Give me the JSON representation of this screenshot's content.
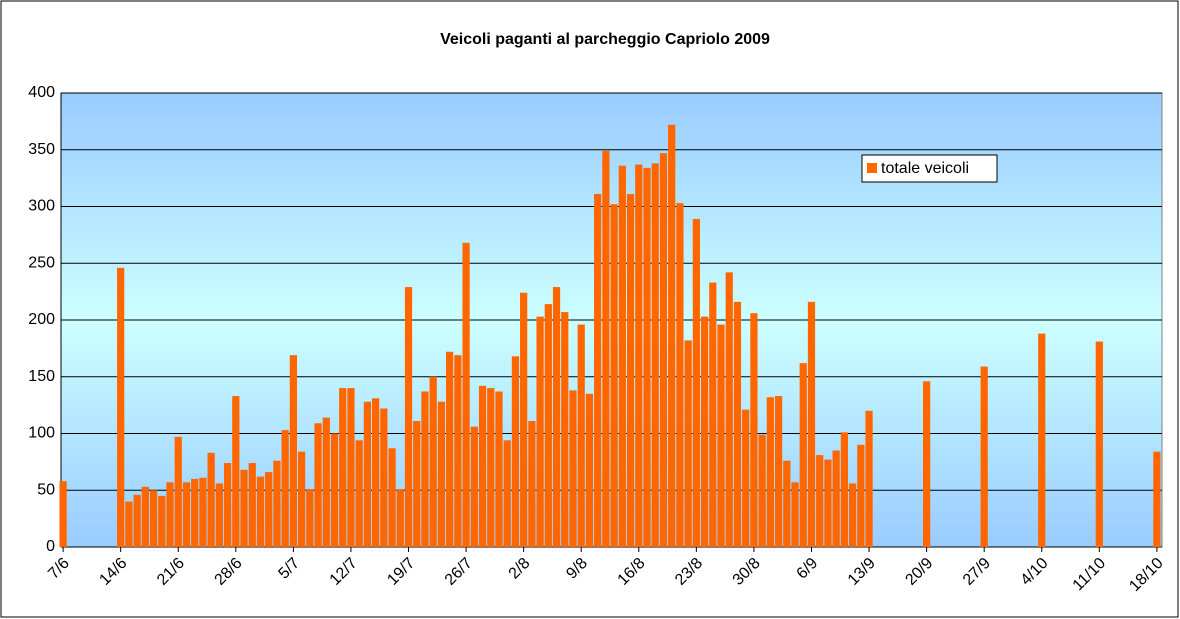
{
  "chart_data": {
    "type": "bar",
    "title": "Veicoli paganti al parcheggio Capriolo 2009",
    "categories": [
      "7/6",
      null,
      null,
      null,
      null,
      null,
      null,
      "14/6",
      null,
      null,
      null,
      null,
      null,
      null,
      "21/6",
      null,
      null,
      null,
      null,
      null,
      null,
      "28/6",
      null,
      null,
      null,
      null,
      null,
      null,
      "5/7",
      null,
      null,
      null,
      null,
      null,
      null,
      "12/7",
      null,
      null,
      null,
      null,
      null,
      null,
      "19/7",
      null,
      null,
      null,
      null,
      null,
      null,
      "26/7",
      null,
      null,
      null,
      null,
      null,
      null,
      "2/8",
      null,
      null,
      null,
      null,
      null,
      null,
      "9/8",
      null,
      null,
      null,
      null,
      null,
      null,
      "16/8",
      null,
      null,
      null,
      null,
      null,
      null,
      "23/8",
      null,
      null,
      null,
      null,
      null,
      null,
      "30/8",
      null,
      null,
      null,
      null,
      null,
      null,
      "6/9",
      null,
      null,
      null,
      null,
      null,
      null,
      "13/9",
      null,
      null,
      null,
      null,
      null,
      null,
      "20/9",
      null,
      null,
      null,
      null,
      null,
      null,
      "27/9",
      null,
      null,
      null,
      null,
      null,
      null,
      "4/10",
      null,
      null,
      null,
      null,
      null,
      null,
      "11/10",
      null,
      null,
      null,
      null,
      null,
      null,
      "18/10"
    ],
    "series": [
      {
        "name": "totale veicoli",
        "color": "#ff6600",
        "values": [
          58,
          null,
          null,
          null,
          null,
          null,
          null,
          246,
          40,
          46,
          53,
          50,
          45,
          57,
          97,
          57,
          60,
          61,
          83,
          56,
          74,
          133,
          68,
          74,
          62,
          66,
          76,
          103,
          169,
          84,
          51,
          109,
          114,
          100,
          140,
          140,
          94,
          128,
          131,
          122,
          87,
          51,
          229,
          111,
          137,
          150,
          128,
          172,
          169,
          268,
          106,
          142,
          140,
          137,
          94,
          168,
          224,
          111,
          203,
          214,
          229,
          207,
          138,
          196,
          135,
          311,
          349,
          302,
          336,
          311,
          337,
          334,
          338,
          347,
          372,
          303,
          182,
          289,
          203,
          233,
          196,
          242,
          216,
          121,
          206,
          99,
          132,
          133,
          76,
          57,
          162,
          216,
          81,
          77,
          85,
          101,
          56,
          90,
          120,
          null,
          null,
          null,
          null,
          null,
          null,
          146,
          null,
          null,
          null,
          null,
          null,
          null,
          159,
          null,
          null,
          null,
          null,
          null,
          null,
          188,
          null,
          null,
          null,
          null,
          null,
          null,
          181,
          null,
          null,
          null,
          null,
          null,
          null,
          84
        ]
      }
    ],
    "ylim": [
      0,
      400
    ],
    "yticks": [
      0,
      50,
      100,
      150,
      200,
      250,
      300,
      350,
      400
    ],
    "grid": true,
    "legend": "upper right"
  }
}
